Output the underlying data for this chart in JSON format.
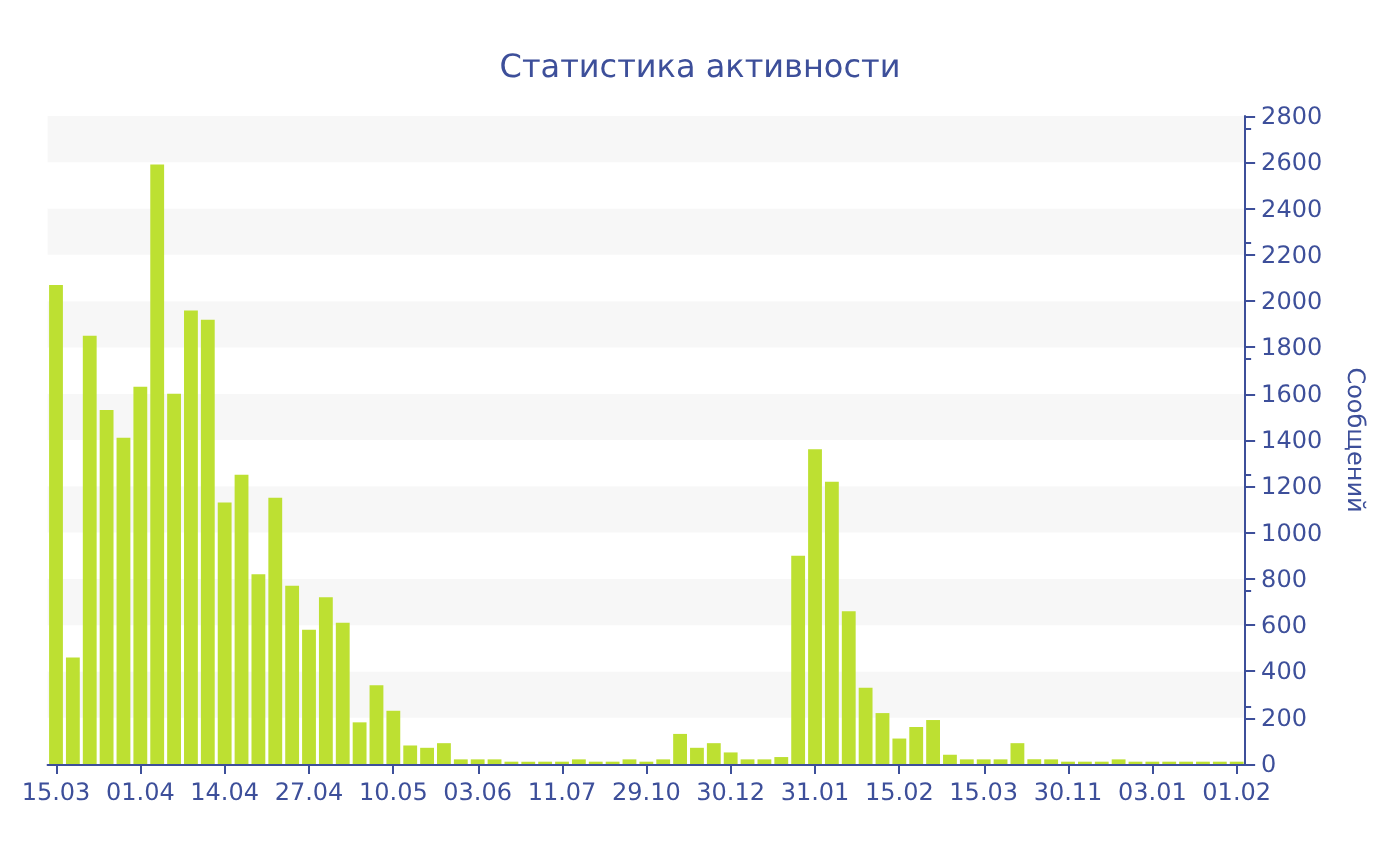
{
  "chart_data": {
    "type": "bar",
    "title": "Статистика активности",
    "ylabel": "Сообщений",
    "categories": [
      "15.03",
      null,
      null,
      null,
      null,
      "01.04",
      null,
      null,
      null,
      null,
      "14.04",
      null,
      null,
      null,
      null,
      "27.04",
      null,
      null,
      null,
      null,
      "10.05",
      null,
      null,
      null,
      null,
      "03.06",
      null,
      null,
      null,
      null,
      "11.07",
      null,
      null,
      null,
      null,
      "29.10",
      null,
      null,
      null,
      null,
      "30.12",
      null,
      null,
      null,
      null,
      "31.01",
      null,
      null,
      null,
      null,
      "15.02",
      null,
      null,
      null,
      null,
      "15.03",
      null,
      null,
      null,
      null,
      "30.11",
      null,
      null,
      null,
      null,
      "03.01",
      null,
      null,
      null,
      null,
      "01.02"
    ],
    "values": [
      2070,
      460,
      1850,
      1530,
      1410,
      1630,
      2590,
      1600,
      1960,
      1920,
      1130,
      1250,
      820,
      1150,
      770,
      580,
      720,
      610,
      180,
      340,
      230,
      80,
      70,
      90,
      20,
      20,
      20,
      10,
      10,
      10,
      10,
      20,
      10,
      10,
      20,
      10,
      20,
      130,
      70,
      90,
      50,
      20,
      20,
      30,
      900,
      1360,
      1220,
      660,
      330,
      220,
      110,
      160,
      190,
      40,
      20,
      20,
      20,
      90,
      20,
      20,
      10,
      10,
      10,
      20,
      10,
      10,
      10,
      10,
      10,
      10,
      10
    ],
    "color": "#bde032",
    "ylim": [
      0,
      2800
    ],
    "yticks": [
      0,
      200,
      400,
      600,
      800,
      1000,
      1200,
      1400,
      1600,
      1800,
      2000,
      2200,
      2400,
      2600,
      2800
    ]
  }
}
